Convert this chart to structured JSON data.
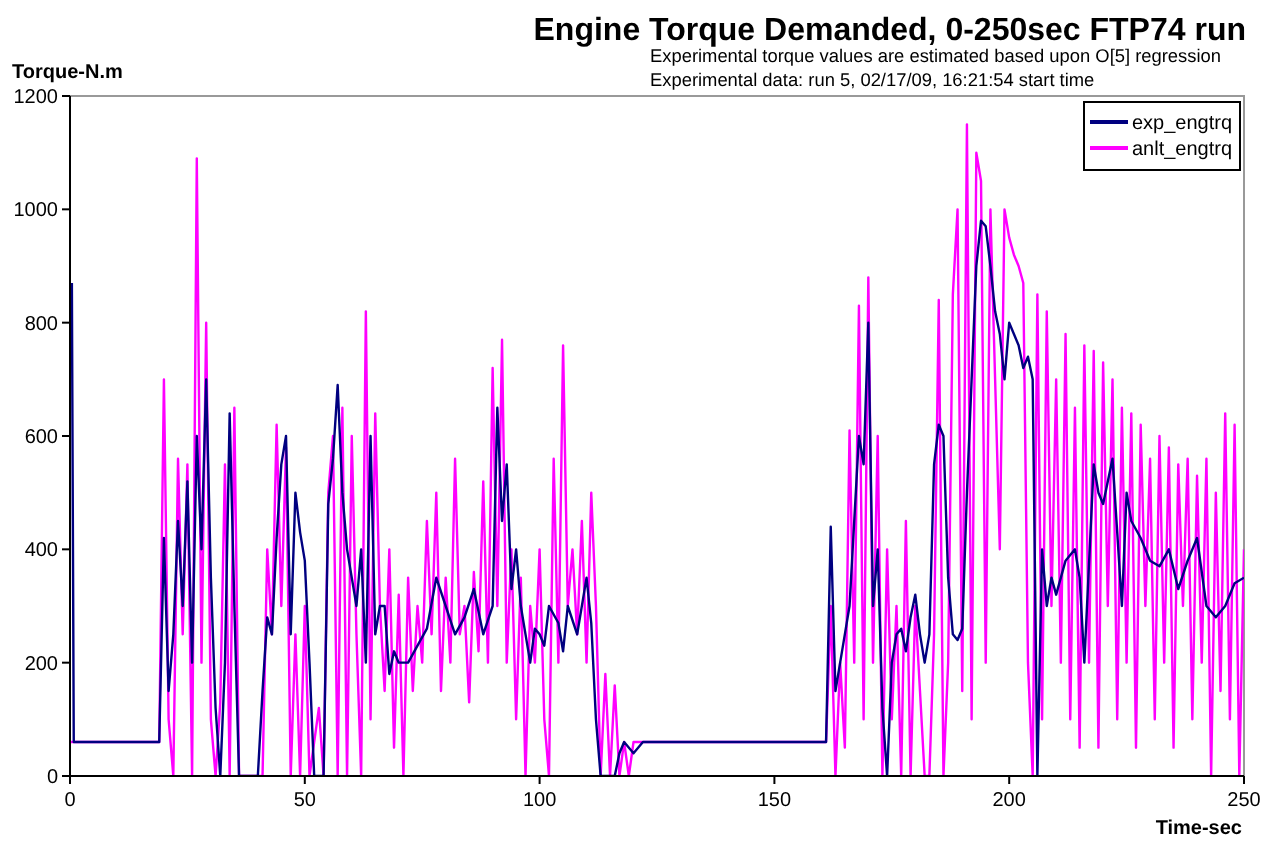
{
  "chart_data": {
    "type": "line",
    "title": "Engine Torque Demanded, 0-250sec FTP74 run",
    "subtitle": "Experimental torque values are estimated based upon O[5] regression",
    "annotations": [
      "Experimental data: run 5, 02/17/09, 16:21:54 start time"
    ],
    "xlabel": "Time-sec",
    "ylabel": "Torque-N.m",
    "xlim": [
      0,
      250
    ],
    "xticks": [
      0,
      50,
      100,
      150,
      200,
      250
    ],
    "ylim": [
      0,
      1200
    ],
    "yticks": [
      0,
      200,
      400,
      600,
      800,
      1000,
      1200
    ],
    "grid": false,
    "legend": "top right",
    "marker": "none",
    "line_style": "solid",
    "series": [
      {
        "name": "exp_engtrq",
        "color": "#000080",
        "x": [
          0.4,
          0.8,
          19,
          20,
          21,
          22,
          23,
          24,
          25,
          26,
          27,
          28,
          29,
          30,
          31,
          32,
          33,
          34,
          35,
          36,
          40,
          41,
          42,
          43,
          44,
          45,
          46,
          47,
          48,
          49,
          50,
          51,
          52,
          54,
          55,
          56,
          57,
          58,
          59,
          60,
          61,
          62,
          63,
          64,
          65,
          66,
          67,
          68,
          69,
          70,
          72,
          74,
          76,
          78,
          80,
          82,
          84,
          86,
          88,
          90,
          91,
          92,
          93,
          94,
          95,
          96,
          97,
          98,
          99,
          100,
          101,
          102,
          104,
          105,
          106,
          108,
          110,
          111,
          112,
          113,
          116,
          117,
          118,
          120,
          122,
          160,
          161,
          162,
          163,
          164,
          165,
          166,
          167,
          168,
          169,
          170,
          171,
          172,
          173,
          174,
          175,
          176,
          177,
          178,
          179,
          180,
          181,
          182,
          183,
          184,
          185,
          186,
          187,
          188,
          189,
          190,
          191,
          192,
          193,
          194,
          195,
          196,
          197,
          198,
          199,
          200,
          201,
          202,
          203,
          204,
          205,
          206,
          207,
          208,
          209,
          210,
          212,
          214,
          215,
          216,
          218,
          219,
          220,
          222,
          224,
          225,
          226,
          228,
          230,
          232,
          234,
          236,
          238,
          240,
          242,
          244,
          246,
          248,
          250
        ],
        "values": [
          870,
          60,
          60,
          420,
          150,
          250,
          450,
          300,
          520,
          200,
          600,
          400,
          700,
          350,
          120,
          0,
          200,
          640,
          300,
          0,
          0,
          150,
          280,
          250,
          420,
          550,
          600,
          250,
          500,
          430,
          380,
          200,
          0,
          0,
          480,
          560,
          690,
          500,
          400,
          350,
          300,
          400,
          200,
          600,
          250,
          300,
          300,
          180,
          220,
          200,
          200,
          230,
          260,
          350,
          300,
          250,
          280,
          330,
          250,
          300,
          650,
          450,
          550,
          330,
          400,
          300,
          250,
          200,
          260,
          250,
          230,
          300,
          270,
          220,
          300,
          250,
          350,
          270,
          100,
          0,
          0,
          40,
          60,
          40,
          60,
          60,
          60,
          440,
          150,
          200,
          250,
          300,
          450,
          600,
          550,
          800,
          300,
          400,
          120,
          0,
          200,
          250,
          260,
          220,
          280,
          320,
          250,
          200,
          250,
          550,
          620,
          600,
          350,
          250,
          240,
          260,
          500,
          700,
          900,
          980,
          970,
          900,
          820,
          780,
          700,
          800,
          780,
          760,
          720,
          740,
          700,
          0,
          400,
          300,
          350,
          320,
          380,
          400,
          350,
          200,
          550,
          500,
          480,
          560,
          300,
          500,
          450,
          420,
          380,
          370,
          400,
          330,
          380,
          420,
          300,
          280,
          300,
          340,
          350
        ]
      },
      {
        "name": "anlt_engtrq",
        "color": "#ff00ff",
        "x": [
          0,
          19,
          20,
          21,
          22,
          23,
          24,
          25,
          26,
          27,
          28,
          29,
          30,
          31,
          32,
          33,
          34,
          35,
          36,
          41,
          42,
          43,
          44,
          45,
          46,
          47,
          48,
          49,
          50,
          51,
          53,
          54,
          55,
          56,
          57,
          58,
          59,
          60,
          61,
          62,
          63,
          64,
          65,
          66,
          67,
          68,
          69,
          70,
          71,
          72,
          73,
          74,
          75,
          76,
          77,
          78,
          79,
          80,
          81,
          82,
          83,
          84,
          85,
          86,
          87,
          88,
          89,
          90,
          91,
          92,
          93,
          94,
          95,
          96,
          97,
          98,
          99,
          100,
          101,
          102,
          103,
          104,
          105,
          106,
          107,
          108,
          109,
          110,
          111,
          112,
          113,
          114,
          115,
          116,
          117,
          118,
          119,
          120,
          123,
          160,
          161,
          162,
          163,
          164,
          165,
          166,
          167,
          168,
          169,
          170,
          171,
          172,
          173,
          174,
          175,
          176,
          177,
          178,
          179,
          180,
          181,
          182,
          183,
          184,
          185,
          186,
          187,
          188,
          189,
          190,
          191,
          192,
          193,
          194,
          195,
          196,
          197,
          198,
          199,
          200,
          201,
          202,
          203,
          204,
          205,
          206,
          207,
          208,
          209,
          210,
          211,
          212,
          213,
          214,
          215,
          216,
          217,
          218,
          219,
          220,
          221,
          222,
          223,
          224,
          225,
          226,
          227,
          228,
          229,
          230,
          231,
          232,
          233,
          234,
          235,
          236,
          237,
          238,
          239,
          240,
          241,
          242,
          243,
          244,
          245,
          246,
          247,
          248,
          249,
          250
        ],
        "values": [
          60,
          60,
          700,
          100,
          0,
          560,
          250,
          550,
          0,
          1090,
          200,
          800,
          100,
          0,
          130,
          550,
          0,
          650,
          0,
          0,
          400,
          250,
          620,
          300,
          580,
          0,
          250,
          0,
          300,
          0,
          120,
          0,
          500,
          600,
          0,
          650,
          0,
          600,
          250,
          0,
          820,
          100,
          640,
          300,
          150,
          400,
          50,
          320,
          0,
          350,
          150,
          300,
          200,
          450,
          250,
          500,
          150,
          350,
          200,
          560,
          250,
          300,
          130,
          360,
          220,
          520,
          200,
          720,
          300,
          770,
          200,
          400,
          100,
          350,
          0,
          300,
          200,
          400,
          100,
          0,
          560,
          200,
          760,
          300,
          400,
          250,
          450,
          200,
          500,
          300,
          0,
          180,
          0,
          160,
          0,
          60,
          0,
          60,
          60,
          60,
          60,
          300,
          0,
          200,
          50,
          610,
          200,
          830,
          100,
          880,
          200,
          600,
          0,
          400,
          100,
          300,
          0,
          450,
          0,
          300,
          150,
          0,
          0,
          250,
          840,
          0,
          200,
          850,
          1000,
          150,
          1150,
          100,
          1100,
          1050,
          200,
          1000,
          700,
          400,
          1000,
          950,
          920,
          900,
          870,
          200,
          0,
          850,
          100,
          820,
          300,
          700,
          200,
          780,
          100,
          650,
          50,
          760,
          200,
          750,
          50,
          730,
          300,
          700,
          100,
          650,
          200,
          640,
          50,
          620,
          300,
          560,
          100,
          600,
          200,
          580,
          50,
          550,
          300,
          560,
          100,
          530,
          200,
          560,
          0,
          500,
          150,
          640,
          100,
          620,
          0,
          400
        ]
      }
    ]
  }
}
